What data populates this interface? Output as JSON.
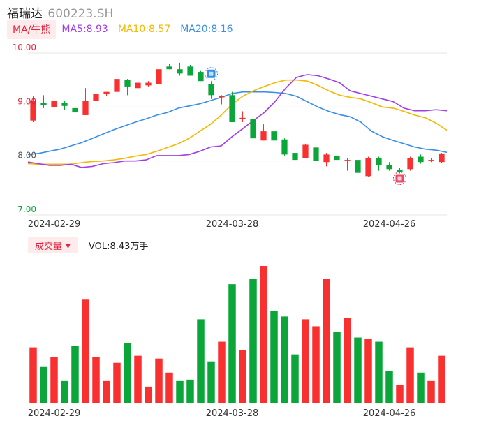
{
  "header": {
    "stock_name": "福瑞达",
    "stock_code": "600223.SH"
  },
  "ma_legend": {
    "tag": "MA/牛熊",
    "items": [
      {
        "label": "MA5:8.93",
        "color": "#a13ee6"
      },
      {
        "label": "MA10:8.57",
        "color": "#f5b800"
      },
      {
        "label": "MA20:8.16",
        "color": "#3a8ee6"
      }
    ]
  },
  "volume_legend": {
    "tag": "成交量",
    "text": "VOL:8.43万手"
  },
  "colors": {
    "up": "#f83030",
    "down": "#0aa63a",
    "grid": "#e6e6e6"
  },
  "icons": [
    "bear-badge-icon",
    "bull-badge-icon"
  ],
  "chart_data": [
    {
      "type": "candlestick",
      "y_range": [
        7.0,
        10.0
      ],
      "y_ticks": [
        "10.00",
        "9.00",
        "8.00",
        "7.00"
      ],
      "x_ticks": [
        "2024-02-29",
        "2024-03-28",
        "2024-04-26"
      ],
      "x_tick_index": [
        2,
        19,
        34
      ],
      "candles": [
        {
          "o": 8.75,
          "h": 9.2,
          "l": 8.72,
          "c": 9.12
        },
        {
          "o": 9.08,
          "h": 9.22,
          "l": 8.98,
          "c": 9.03
        },
        {
          "o": 9.0,
          "h": 9.12,
          "l": 8.8,
          "c": 9.12
        },
        {
          "o": 9.08,
          "h": 9.12,
          "l": 8.95,
          "c": 9.02
        },
        {
          "o": 8.98,
          "h": 9.02,
          "l": 8.75,
          "c": 8.9
        },
        {
          "o": 8.85,
          "h": 9.35,
          "l": 8.85,
          "c": 9.12
        },
        {
          "o": 9.12,
          "h": 9.32,
          "l": 9.1,
          "c": 9.25
        },
        {
          "o": 9.25,
          "h": 9.28,
          "l": 9.2,
          "c": 9.28
        },
        {
          "o": 9.28,
          "h": 9.53,
          "l": 9.25,
          "c": 9.52
        },
        {
          "o": 9.5,
          "h": 9.52,
          "l": 9.22,
          "c": 9.38
        },
        {
          "o": 9.35,
          "h": 9.45,
          "l": 9.32,
          "c": 9.45
        },
        {
          "o": 9.4,
          "h": 9.48,
          "l": 9.38,
          "c": 9.45
        },
        {
          "o": 9.42,
          "h": 9.72,
          "l": 9.4,
          "c": 9.7
        },
        {
          "o": 9.75,
          "h": 9.8,
          "l": 9.7,
          "c": 9.7
        },
        {
          "o": 9.7,
          "h": 9.82,
          "l": 9.58,
          "c": 9.62
        },
        {
          "o": 9.75,
          "h": 9.78,
          "l": 9.58,
          "c": 9.58
        },
        {
          "o": 9.65,
          "h": 9.68,
          "l": 9.48,
          "c": 9.48
        },
        {
          "o": 9.42,
          "h": 9.48,
          "l": 9.15,
          "c": 9.22
        },
        {
          "o": 9.18,
          "h": 9.22,
          "l": 9.05,
          "c": 9.2
        },
        {
          "o": 9.22,
          "h": 9.28,
          "l": 8.72,
          "c": 8.72
        },
        {
          "o": 8.78,
          "h": 8.92,
          "l": 8.72,
          "c": 8.8
        },
        {
          "o": 8.78,
          "h": 8.78,
          "l": 8.28,
          "c": 8.42
        },
        {
          "o": 8.38,
          "h": 8.68,
          "l": 8.38,
          "c": 8.55
        },
        {
          "o": 8.55,
          "h": 8.58,
          "l": 8.15,
          "c": 8.38
        },
        {
          "o": 8.4,
          "h": 8.42,
          "l": 8.1,
          "c": 8.12
        },
        {
          "o": 8.15,
          "h": 8.2,
          "l": 8.0,
          "c": 8.02
        },
        {
          "o": 8.05,
          "h": 8.32,
          "l": 8.05,
          "c": 8.3
        },
        {
          "o": 8.25,
          "h": 8.26,
          "l": 7.98,
          "c": 8.0
        },
        {
          "o": 7.98,
          "h": 8.15,
          "l": 7.9,
          "c": 8.12
        },
        {
          "o": 8.1,
          "h": 8.15,
          "l": 8.0,
          "c": 8.02
        },
        {
          "o": 8.02,
          "h": 8.05,
          "l": 7.82,
          "c": 8.02
        },
        {
          "o": 8.02,
          "h": 8.05,
          "l": 7.58,
          "c": 7.78
        },
        {
          "o": 7.72,
          "h": 8.08,
          "l": 7.7,
          "c": 8.06
        },
        {
          "o": 8.05,
          "h": 8.08,
          "l": 7.82,
          "c": 7.92
        },
        {
          "o": 7.92,
          "h": 7.98,
          "l": 7.82,
          "c": 7.85
        },
        {
          "o": 7.84,
          "h": 7.88,
          "l": 7.77,
          "c": 7.8
        },
        {
          "o": 7.85,
          "h": 8.08,
          "l": 7.82,
          "c": 8.05
        },
        {
          "o": 8.08,
          "h": 8.12,
          "l": 7.95,
          "c": 7.98
        },
        {
          "o": 8.02,
          "h": 8.05,
          "l": 7.98,
          "c": 8.02
        },
        {
          "o": 7.98,
          "h": 8.15,
          "l": 7.96,
          "c": 8.14
        }
      ],
      "ma5": [
        7.98,
        7.95,
        7.92,
        7.92,
        7.94,
        7.88,
        7.9,
        7.95,
        7.97,
        8.0,
        8.0,
        8.02,
        8.1,
        8.1,
        8.1,
        8.12,
        8.18,
        8.26,
        8.28,
        8.45,
        8.6,
        8.75,
        8.9,
        9.1,
        9.35,
        9.55,
        9.6,
        9.58,
        9.52,
        9.45,
        9.3,
        9.25,
        9.2,
        9.15,
        9.1,
        8.98,
        8.93,
        8.93,
        8.95,
        8.93
      ],
      "ma10": [
        7.95,
        7.94,
        7.94,
        7.94,
        7.94,
        7.97,
        7.99,
        8.0,
        8.02,
        8.05,
        8.09,
        8.12,
        8.18,
        8.25,
        8.32,
        8.42,
        8.55,
        8.68,
        8.85,
        9.05,
        9.2,
        9.3,
        9.38,
        9.45,
        9.5,
        9.5,
        9.48,
        9.4,
        9.3,
        9.22,
        9.18,
        9.15,
        9.08,
        9.0,
        8.98,
        8.92,
        8.85,
        8.8,
        8.7,
        8.57
      ],
      "ma20": [
        8.12,
        8.14,
        8.18,
        8.22,
        8.28,
        8.34,
        8.42,
        8.5,
        8.58,
        8.65,
        8.72,
        8.78,
        8.85,
        8.9,
        8.98,
        9.02,
        9.06,
        9.12,
        9.18,
        9.25,
        9.28,
        9.28,
        9.28,
        9.27,
        9.25,
        9.2,
        9.1,
        9.0,
        8.92,
        8.86,
        8.82,
        8.72,
        8.55,
        8.45,
        8.38,
        8.32,
        8.26,
        8.22,
        8.2,
        8.16
      ]
    },
    {
      "type": "bar",
      "series_name": "VOL",
      "ylim": [
        0,
        100
      ],
      "values": [
        40,
        26,
        33,
        16,
        41,
        74,
        33,
        16,
        29,
        43,
        34,
        12,
        32,
        22,
        16,
        17,
        60,
        30,
        44,
        85,
        38,
        89,
        98,
        66,
        62,
        35,
        60,
        55,
        89,
        51,
        61,
        47,
        46,
        44,
        23,
        13,
        40,
        22,
        16,
        34
      ],
      "up": [
        true,
        false,
        true,
        false,
        false,
        true,
        true,
        true,
        true,
        false,
        true,
        true,
        true,
        true,
        false,
        false,
        false,
        false,
        true,
        false,
        true,
        false,
        true,
        false,
        false,
        false,
        true,
        true,
        true,
        false,
        true,
        false,
        true,
        false,
        false,
        true,
        true,
        false,
        true,
        true
      ]
    }
  ]
}
